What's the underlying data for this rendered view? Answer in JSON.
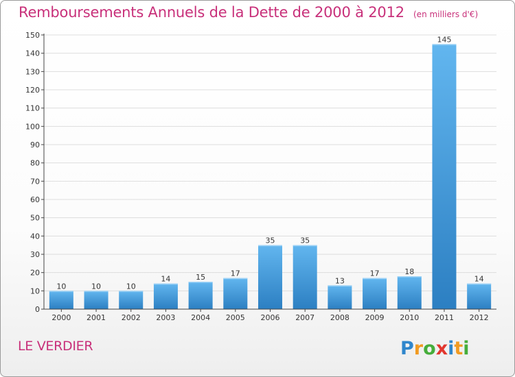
{
  "title": "Remboursements Annuels de la Dette de 2000 à 2012",
  "subtitle": "(en milliers d'€)",
  "commune": "LE VERDIER",
  "logo_text": "Proxiti",
  "colors": {
    "title": "#c8307a",
    "bar_light": "#62b6ef",
    "bar_dark": "#2c7fc2",
    "grid": "#dddddd",
    "axis": "#444444"
  },
  "chart_data": {
    "type": "bar",
    "categories": [
      "2000",
      "2001",
      "2002",
      "2003",
      "2004",
      "2005",
      "2006",
      "2007",
      "2008",
      "2009",
      "2010",
      "2011",
      "2012"
    ],
    "values": [
      10,
      10,
      10,
      14,
      15,
      17,
      35,
      35,
      13,
      17,
      18,
      145,
      14
    ],
    "yticks": [
      0,
      10,
      20,
      30,
      40,
      50,
      60,
      70,
      80,
      90,
      100,
      110,
      120,
      130,
      140,
      150
    ],
    "ylim": [
      0,
      150
    ],
    "grid": true,
    "legend": "none"
  }
}
